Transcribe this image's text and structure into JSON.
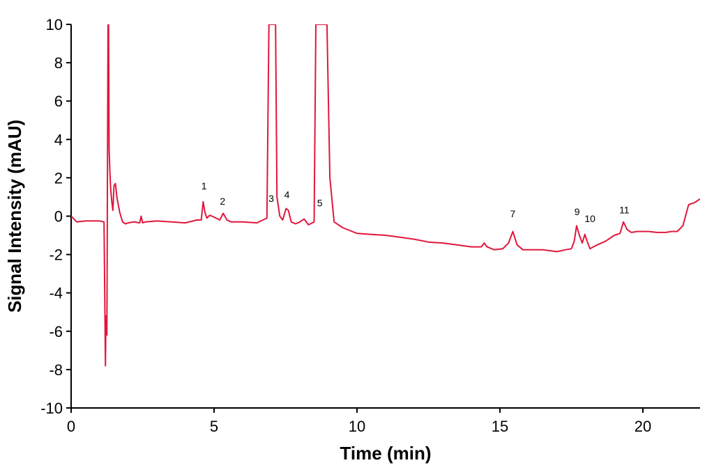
{
  "chart_data": {
    "type": "line",
    "title": "",
    "xlabel": "Time (min)",
    "ylabel": "Signal Intensity (mAU)",
    "xlim": [
      0,
      22
    ],
    "ylim": [
      -10,
      10
    ],
    "x_ticks": [
      0,
      5,
      10,
      15,
      20
    ],
    "y_ticks": [
      -10,
      -8,
      -6,
      -4,
      -2,
      0,
      2,
      4,
      6,
      8,
      10
    ],
    "grid": false,
    "legend": "none",
    "line_color": "#e0173c",
    "series": [
      {
        "x": [
          0,
          0.2,
          0.5,
          0.8,
          1.0,
          1.15,
          1.2,
          1.22,
          1.25,
          1.27,
          1.29,
          1.31,
          1.33,
          1.35,
          1.38,
          1.42,
          1.46,
          1.5,
          1.55,
          1.6,
          1.65,
          1.7,
          1.8,
          1.9,
          2.0,
          2.2,
          2.4,
          2.45,
          2.5,
          2.6,
          3.0,
          3.5,
          4.0,
          4.4,
          4.55,
          4.62,
          4.68,
          4.75,
          4.85,
          5.0,
          5.2,
          5.32,
          5.45,
          5.6,
          6.0,
          6.5,
          6.85,
          6.92,
          6.95,
          6.97,
          7.12,
          7.15,
          7.2,
          7.3,
          7.4,
          7.52,
          7.6,
          7.7,
          7.85,
          8.0,
          8.15,
          8.3,
          8.5,
          8.56,
          8.6,
          8.9,
          8.95,
          9.05,
          9.2,
          9.5,
          10.0,
          10.5,
          11.0,
          11.5,
          12.0,
          12.5,
          13.0,
          13.5,
          14.0,
          14.35,
          14.45,
          14.55,
          14.8,
          15.1,
          15.3,
          15.45,
          15.6,
          15.8,
          16.0,
          16.5,
          17.0,
          17.3,
          17.5,
          17.6,
          17.68,
          17.78,
          17.88,
          17.97,
          18.05,
          18.15,
          18.4,
          18.7,
          19.0,
          19.2,
          19.32,
          19.45,
          19.6,
          19.8,
          20.2,
          20.5,
          20.8,
          21.0,
          21.2,
          21.4,
          21.6,
          21.8,
          21.9,
          22.0
        ],
        "y": [
          0.0,
          -0.3,
          -0.25,
          -0.25,
          -0.25,
          -0.3,
          -7.8,
          -5.2,
          -6.2,
          2.0,
          10.0,
          10.0,
          3.5,
          2.5,
          1.5,
          0.8,
          0.3,
          1.6,
          1.7,
          1.0,
          0.6,
          0.2,
          -0.3,
          -0.4,
          -0.35,
          -0.3,
          -0.35,
          0.0,
          -0.35,
          -0.3,
          -0.25,
          -0.3,
          -0.35,
          -0.2,
          -0.2,
          0.75,
          0.2,
          -0.1,
          0.05,
          -0.05,
          -0.2,
          0.15,
          -0.2,
          -0.3,
          -0.3,
          -0.35,
          -0.1,
          10.0,
          10.0,
          10.0,
          10.0,
          10.0,
          1.0,
          0.0,
          -0.2,
          0.4,
          0.3,
          -0.3,
          -0.4,
          -0.3,
          -0.15,
          -0.45,
          -0.3,
          10.0,
          10.0,
          10.0,
          10.0,
          2.0,
          -0.3,
          -0.6,
          -0.9,
          -0.95,
          -1.0,
          -1.1,
          -1.2,
          -1.35,
          -1.4,
          -1.5,
          -1.6,
          -1.6,
          -1.4,
          -1.6,
          -1.75,
          -1.7,
          -1.4,
          -0.8,
          -1.5,
          -1.75,
          -1.75,
          -1.75,
          -1.85,
          -1.75,
          -1.7,
          -1.3,
          -0.5,
          -1.0,
          -1.4,
          -0.95,
          -1.3,
          -1.7,
          -1.5,
          -1.3,
          -1.0,
          -0.9,
          -0.3,
          -0.7,
          -0.85,
          -0.8,
          -0.8,
          -0.85,
          -0.85,
          -0.8,
          -0.8,
          -0.5,
          0.6,
          0.7,
          0.8,
          0.9
        ]
      }
    ],
    "annotations": [
      {
        "text": "1",
        "x": 4.65,
        "y": 1.4
      },
      {
        "text": "2",
        "x": 5.3,
        "y": 0.6
      },
      {
        "text": "3",
        "x": 7.0,
        "y": 0.75
      },
      {
        "text": "4",
        "x": 7.55,
        "y": 0.95
      },
      {
        "text": "5",
        "x": 8.7,
        "y": 0.5
      },
      {
        "text": "7",
        "x": 15.45,
        "y": -0.05
      },
      {
        "text": "9",
        "x": 17.7,
        "y": 0.05
      },
      {
        "text": "10",
        "x": 18.15,
        "y": -0.3
      },
      {
        "text": "11",
        "x": 19.35,
        "y": 0.15
      }
    ]
  }
}
